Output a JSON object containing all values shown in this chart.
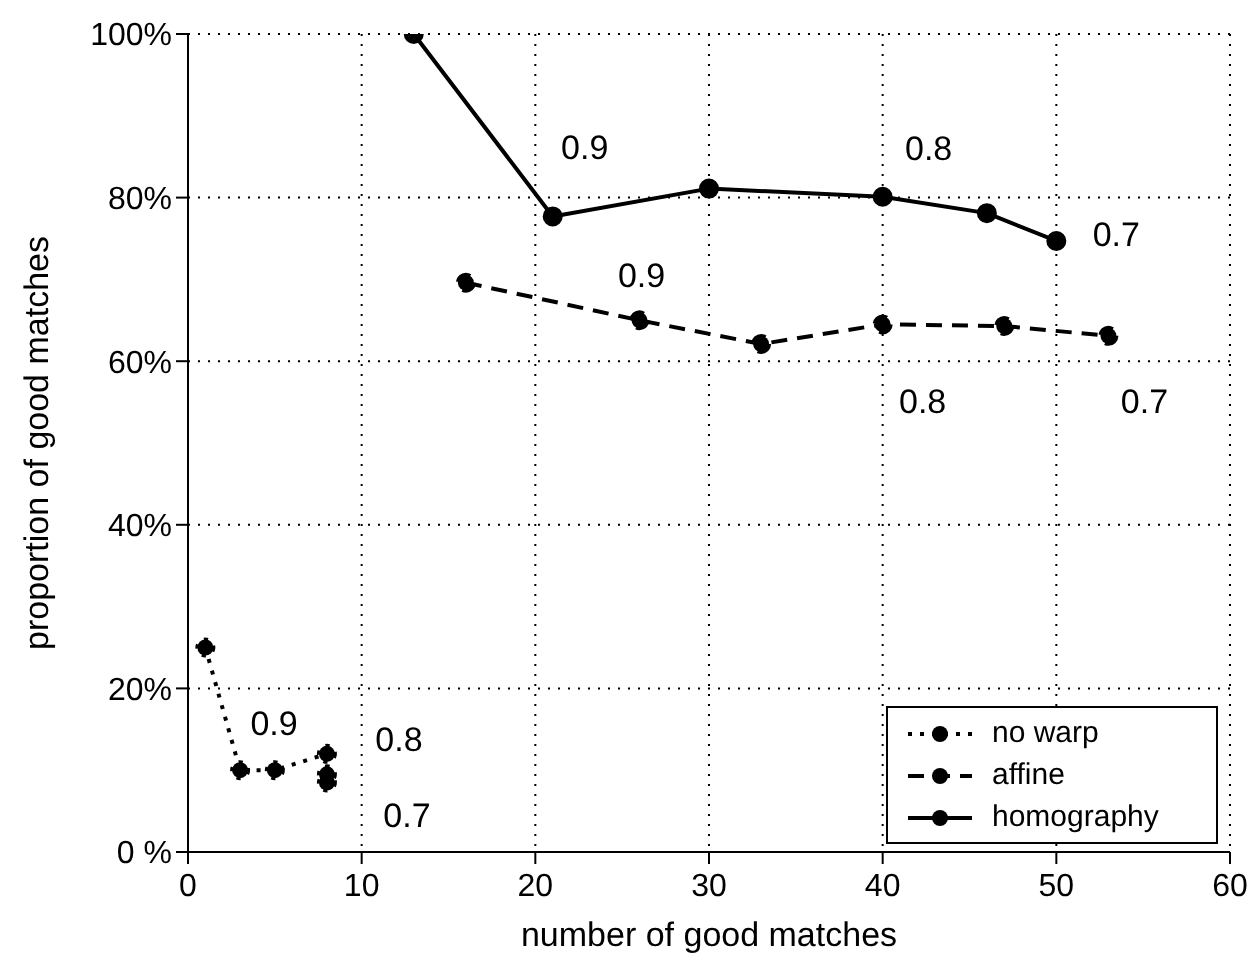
{
  "chart_data": {
    "type": "line",
    "xlabel": "number of good matches",
    "ylabel": "proportion of good matches",
    "series": [
      {
        "name": "no warp",
        "color": "#000000",
        "line_style": "dotted",
        "x": [
          1,
          3,
          5,
          8,
          8,
          8
        ],
        "values": [
          25,
          10,
          10,
          12,
          9.5,
          8.5
        ]
      },
      {
        "name": "affine",
        "color": "#000000",
        "line_style": "dashed",
        "x": [
          16,
          26,
          33,
          40,
          47,
          53
        ],
        "values": [
          69.6,
          65,
          62.1,
          64.5,
          64.3,
          63.1
        ]
      },
      {
        "name": "homography",
        "color": "#000000",
        "line_style": "solid",
        "x": [
          13,
          21,
          30,
          40,
          46,
          50
        ],
        "values": [
          100,
          77.7,
          81.1,
          80.1,
          78.1,
          74.7
        ]
      }
    ],
    "annotations": [
      {
        "text": "0.9",
        "x": 3,
        "y": 10
      },
      {
        "text": "0.8",
        "x": 8,
        "y": 12
      },
      {
        "text": "0.7",
        "x": 8,
        "y": 8.5
      },
      {
        "text": "0.9",
        "x": 26,
        "y": 65
      },
      {
        "text": "0.8",
        "x": 40,
        "y": 64.5
      },
      {
        "text": "0.7",
        "x": 53,
        "y": 63.1
      },
      {
        "text": "0.9",
        "x": 21,
        "y": 77.7
      },
      {
        "text": "0.8",
        "x": 40,
        "y": 80.1
      },
      {
        "text": "0.7",
        "x": 50,
        "y": 74.7
      }
    ],
    "xlim": [
      0,
      60
    ],
    "xticks": [
      0,
      10,
      20,
      30,
      40,
      50,
      60
    ],
    "ylim": [
      0,
      100
    ],
    "yticks": [
      {
        "value": 0,
        "label": "0 %"
      },
      {
        "value": 20,
        "label": "20%"
      },
      {
        "value": 40,
        "label": "40%"
      },
      {
        "value": 60,
        "label": "60%"
      },
      {
        "value": 80,
        "label": "80%"
      },
      {
        "value": 100,
        "label": "100%"
      }
    ],
    "grid": true,
    "legend": "bottom right",
    "marker": "circle"
  }
}
